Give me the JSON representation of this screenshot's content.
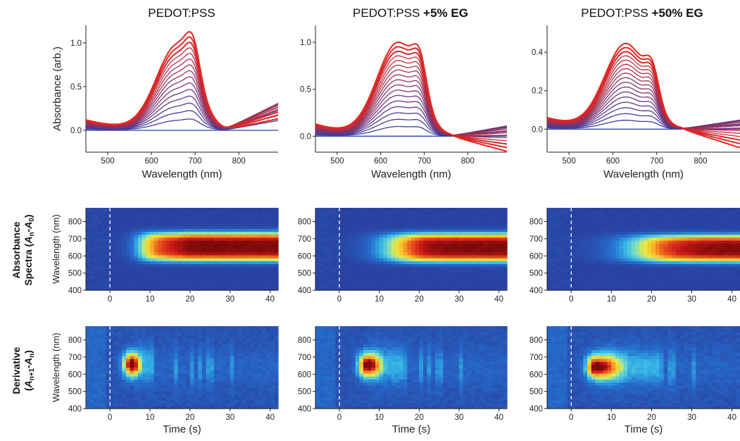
{
  "column_titles": [
    {
      "plain": "PEDOT:PSS",
      "bold": ""
    },
    {
      "plain": "PEDOT:PSS ",
      "bold": "+5% EG"
    },
    {
      "plain": "PEDOT:PSS ",
      "bold": "+50% EG"
    }
  ],
  "row_labels": {
    "absorbance": {
      "line1": "Absorbance",
      "line2_pre": "Spectra (",
      "line2_var1": "A",
      "line2_sub1": "n",
      "line2_mid": "-",
      "line2_var2": "A",
      "line2_sub2": "0",
      "line2_post": ")"
    },
    "derivative": {
      "line1": "Derivative",
      "line2_pre": "(",
      "line2_var1": "A",
      "line2_sub1": "n+1",
      "line2_mid": "-",
      "line2_var2": "A",
      "line2_sub2": "n",
      "line2_post": ")"
    }
  },
  "colors": {
    "spectrum_start": "#2f3fa8",
    "spectrum_end": "#e8261e",
    "dashed_line": "#ffffff",
    "heatmap_low": "#2a3d9c"
  },
  "chart_data": [
    {
      "type": "line",
      "id": "spectra-pedot",
      "xlabel": "Wavelength (nm)",
      "ylabel": "Absorbance (arb.)",
      "xlim": [
        450,
        890
      ],
      "ylim": [
        -0.25,
        1.2
      ],
      "xticks": [
        500,
        600,
        700,
        800
      ],
      "yticks": [
        0.0,
        0.5,
        1.0
      ],
      "ytick_labels": [
        "0.0",
        "0.5",
        "1.0"
      ],
      "series_count": 16,
      "peak_wavelength": 660,
      "shoulder_wavelength": 695,
      "max_absorbance": 1.08,
      "baseline_at_450": 0.12,
      "crossing_wavelength": 765,
      "tail_at_880_for_max": 0.12,
      "tail_at_880_for_mid": 0.25
    },
    {
      "type": "line",
      "id": "spectra-pedot-5eg",
      "xlabel": "Wavelength (nm)",
      "ylabel": "",
      "xlim": [
        450,
        890
      ],
      "ylim": [
        -0.17,
        1.18
      ],
      "xticks": [
        500,
        600,
        700,
        800
      ],
      "yticks": [
        0.0,
        0.5,
        1.0
      ],
      "ytick_labels": [
        "0.0",
        "0.5",
        "1.0"
      ],
      "series_count": 18,
      "peak_wavelength": 640,
      "shoulder_wavelength": 690,
      "max_absorbance": 1.1,
      "baseline_at_450": 0.13,
      "crossing_wavelength": 760,
      "tail_at_880_for_max": -0.15,
      "tail_at_880_for_mid": 0.13
    },
    {
      "type": "line",
      "id": "spectra-pedot-50eg",
      "xlabel": "Wavelength (nm)",
      "ylabel": "",
      "xlim": [
        450,
        890
      ],
      "ylim": [
        -0.12,
        0.54
      ],
      "xticks": [
        500,
        600,
        700,
        800
      ],
      "yticks": [
        0.0,
        0.2,
        0.4
      ],
      "ytick_labels": [
        "0.0",
        "0.2",
        "0.4"
      ],
      "series_count": 18,
      "peak_wavelength": 630,
      "shoulder_wavelength": 690,
      "max_absorbance": 0.49,
      "baseline_at_450": 0.06,
      "crossing_wavelength": 755,
      "tail_at_880_for_max": -0.09,
      "tail_at_880_for_mid": 0.06
    },
    {
      "type": "heatmap",
      "id": "abs-map-pedot",
      "xlabel": "",
      "ylabel": "Wavelength (nm)",
      "xlim": [
        -6,
        42
      ],
      "ylim": [
        400,
        880
      ],
      "xticks": [
        0,
        10,
        20,
        30,
        40
      ],
      "yticks": [
        400,
        500,
        600,
        700,
        800
      ],
      "onset_time": 5,
      "rise_time": 2.5,
      "band_center_nm": 655,
      "band_half_width_nm": 85,
      "dashed_line_time": 0
    },
    {
      "type": "heatmap",
      "id": "abs-map-pedot-5eg",
      "xlabel": "",
      "ylabel": "",
      "xlim": [
        -6,
        42
      ],
      "ylim": [
        400,
        880
      ],
      "xticks": [
        0,
        10,
        20,
        30,
        40
      ],
      "yticks": [
        400,
        500,
        600,
        700,
        800
      ],
      "onset_time": 6,
      "rise_time": 6,
      "band_center_nm": 650,
      "band_half_width_nm": 85,
      "dashed_line_time": 0
    },
    {
      "type": "heatmap",
      "id": "abs-map-pedot-50eg",
      "xlabel": "",
      "ylabel": "",
      "xlim": [
        -6,
        42
      ],
      "ylim": [
        400,
        880
      ],
      "xticks": [
        0,
        10,
        20,
        30,
        40
      ],
      "yticks": [
        400,
        500,
        600,
        700,
        800
      ],
      "onset_time": 7,
      "rise_time": 9,
      "band_center_nm": 645,
      "band_half_width_nm": 80,
      "dashed_line_time": 0
    },
    {
      "type": "heatmap",
      "id": "deriv-map-pedot",
      "xlabel": "Time (s)",
      "ylabel": "Wavelength (nm)",
      "xlim": [
        -6,
        42
      ],
      "ylim": [
        400,
        880
      ],
      "xticks": [
        0,
        10,
        20,
        30,
        40
      ],
      "yticks": [
        400,
        500,
        600,
        700,
        800
      ],
      "hotspot_time": 5.5,
      "hotspot_nm": 660,
      "active_until": 11,
      "dashed_line_time": 0
    },
    {
      "type": "heatmap",
      "id": "deriv-map-pedot-5eg",
      "xlabel": "Time (s)",
      "ylabel": "",
      "xlim": [
        -6,
        42
      ],
      "ylim": [
        400,
        880
      ],
      "xticks": [
        0,
        10,
        20,
        30,
        40
      ],
      "yticks": [
        400,
        500,
        600,
        700,
        800
      ],
      "hotspot_time": 7,
      "hotspot_nm": 655,
      "active_until": 16,
      "dashed_line_time": 0
    },
    {
      "type": "heatmap",
      "id": "deriv-map-pedot-50eg",
      "xlabel": "Time (s)",
      "ylabel": "",
      "xlim": [
        -6,
        42
      ],
      "ylim": [
        400,
        880
      ],
      "xticks": [
        0,
        10,
        20,
        30,
        40
      ],
      "yticks": [
        400,
        500,
        600,
        700,
        800
      ],
      "hotspot_time": 6,
      "hotspot_nm": 645,
      "active_until": 22,
      "dashed_line_time": 0
    }
  ]
}
